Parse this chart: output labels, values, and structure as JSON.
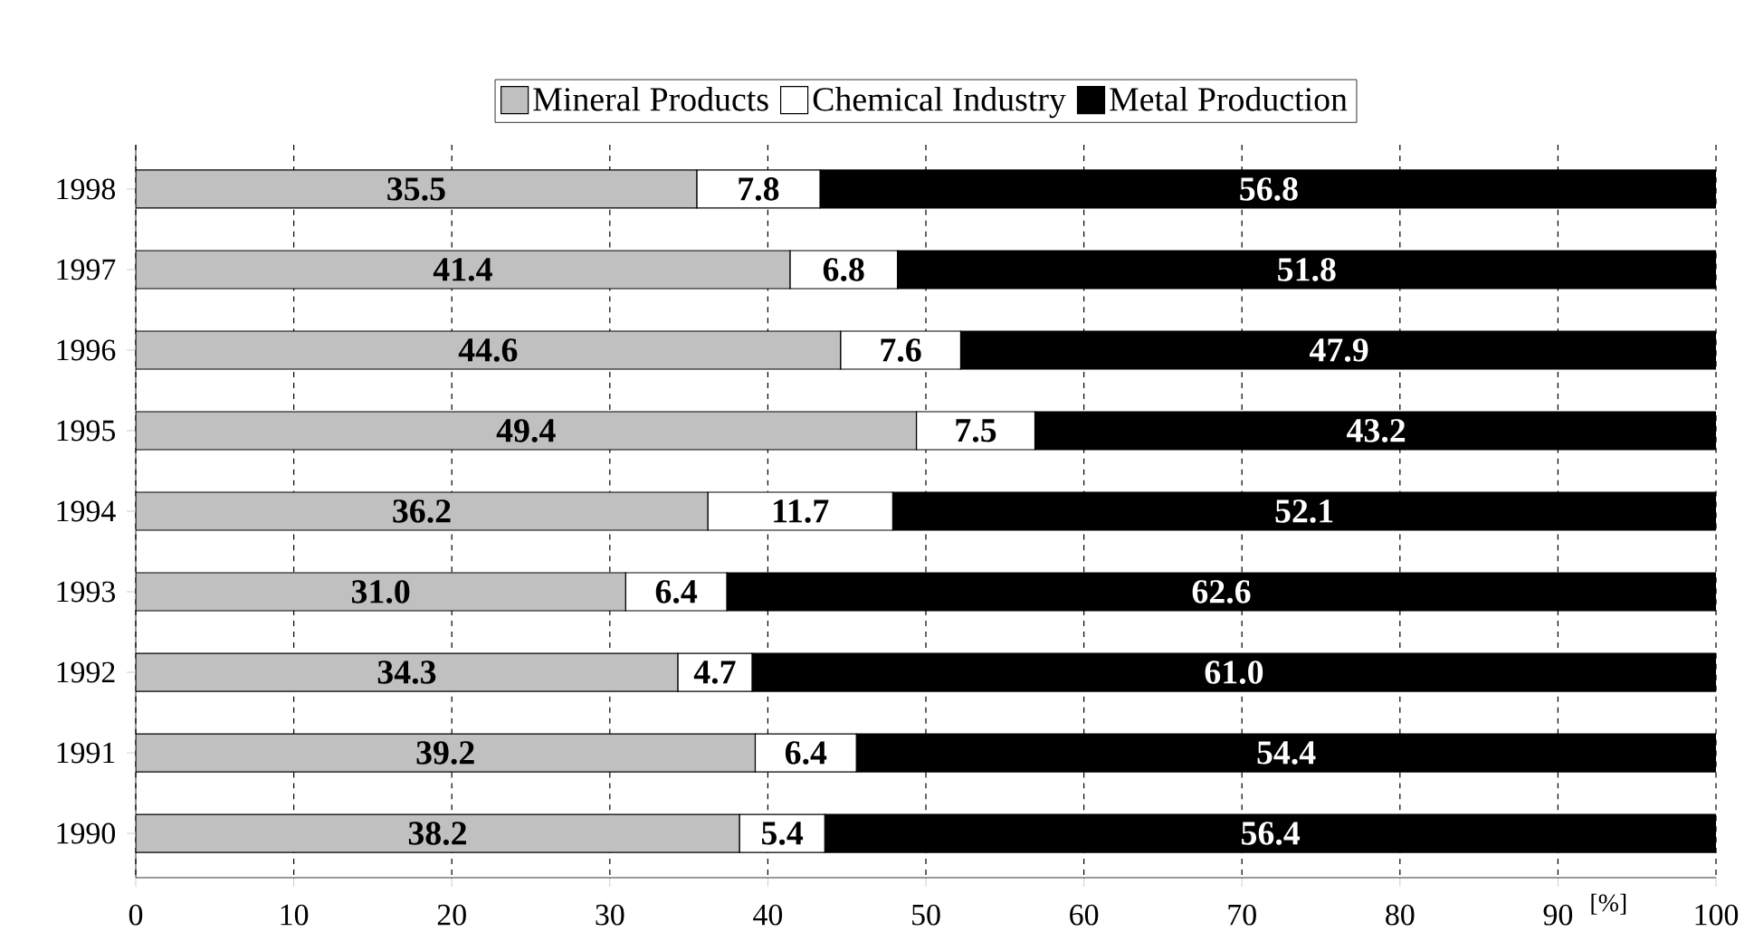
{
  "chart_data": {
    "type": "bar",
    "orientation": "horizontal",
    "stacked": true,
    "categories": [
      "1998",
      "1997",
      "1996",
      "1995",
      "1994",
      "1993",
      "1992",
      "1991",
      "1990"
    ],
    "series": [
      {
        "name": "Mineral Products",
        "color": "#c0c0c0",
        "values": [
          35.5,
          41.4,
          44.6,
          49.4,
          36.2,
          31.0,
          34.3,
          39.2,
          38.2
        ],
        "value_labels": [
          "35.5",
          "41.4",
          "44.6",
          "49.4",
          "36.2",
          "31.0",
          "34.3",
          "39.2",
          "38.2"
        ]
      },
      {
        "name": "Chemical Industry",
        "color": "#ffffff",
        "values": [
          7.8,
          6.8,
          7.6,
          7.5,
          11.7,
          6.4,
          4.7,
          6.4,
          5.4
        ],
        "value_labels": [
          "7.8",
          "6.8",
          "7.6",
          "7.5",
          "11.7",
          "6.4",
          "4.7",
          "6.4",
          "5.4"
        ]
      },
      {
        "name": "Metal Production",
        "color": "#000000",
        "values": [
          56.8,
          51.8,
          47.9,
          43.2,
          52.1,
          62.6,
          61.0,
          54.4,
          56.4
        ],
        "value_labels": [
          "56.8",
          "51.8",
          "47.9",
          "43.2",
          "52.1",
          "62.6",
          "61.0",
          "54.4",
          "56.4"
        ]
      }
    ],
    "xlim": [
      0,
      100
    ],
    "xticks": [
      0,
      10,
      20,
      30,
      40,
      50,
      60,
      70,
      80,
      90,
      100
    ],
    "xlabel": "[%]",
    "grid": "x",
    "legend": "top"
  }
}
